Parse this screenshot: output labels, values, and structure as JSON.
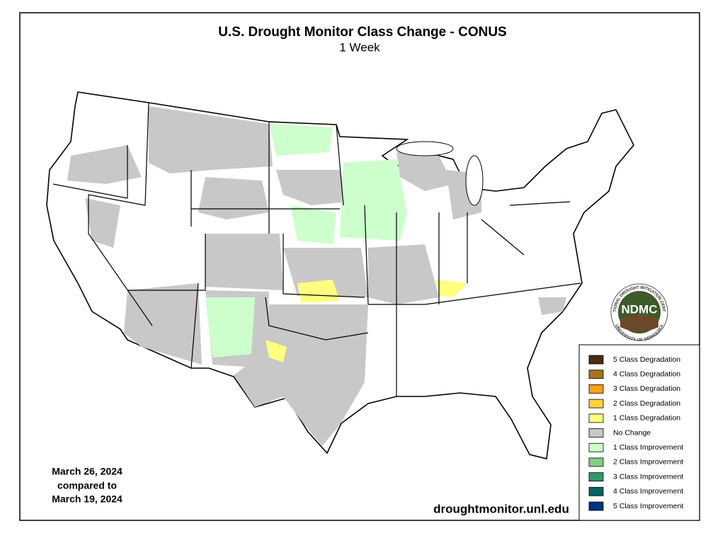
{
  "header": {
    "title": "U.S. Drought Monitor Class Change - CONUS",
    "subtitle": "1 Week"
  },
  "legend": {
    "items": [
      {
        "label": "5 Class Degradation",
        "color": "#4a2c12"
      },
      {
        "label": "4 Class Degradation",
        "color": "#a5731f"
      },
      {
        "label": "3 Class Degradation",
        "color": "#ff9f1a"
      },
      {
        "label": "2 Class Degradation",
        "color": "#ffd23f"
      },
      {
        "label": "1 Class Degradation",
        "color": "#ffff80"
      },
      {
        "label": "No Change",
        "color": "#c8c8c8"
      },
      {
        "label": "1 Class Improvement",
        "color": "#ccffcc"
      },
      {
        "label": "2 Class Improvement",
        "color": "#80d080"
      },
      {
        "label": "3 Class Improvement",
        "color": "#339966"
      },
      {
        "label": "4 Class Improvement",
        "color": "#006666"
      },
      {
        "label": "5 Class Improvement",
        "color": "#003380"
      }
    ]
  },
  "date": {
    "lines": [
      "March 26, 2024",
      "compared to",
      "March 19, 2024"
    ]
  },
  "website": "droughtmonitor.unl.edu",
  "logo": {
    "acronym": "NDMC",
    "top_text": "NATIONAL DROUGHT MITIGATION CENTER",
    "bottom_text": "UNIVERSITY OF NEBRASKA"
  }
}
